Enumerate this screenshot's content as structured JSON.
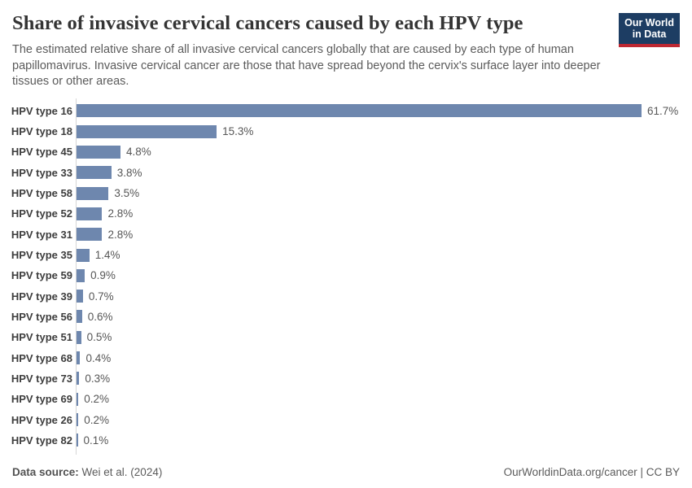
{
  "header": {
    "title": "Share of invasive cervical cancers caused by each HPV type",
    "subtitle": "The estimated relative share of all invasive cervical cancers globally that are caused by each type of human papillomavirus. Invasive cervical cancer are those that have spread beyond the cervix's surface layer into deeper tissues or other areas.",
    "logo": {
      "line1": "Our World",
      "line2": "in Data"
    }
  },
  "chart_data": {
    "type": "bar",
    "orientation": "horizontal",
    "title": "Share of invasive cervical cancers caused by each HPV type",
    "categories": [
      "HPV type 16",
      "HPV type 18",
      "HPV type 45",
      "HPV type 33",
      "HPV type 58",
      "HPV type 52",
      "HPV type 31",
      "HPV type 35",
      "HPV type 59",
      "HPV type 39",
      "HPV type 56",
      "HPV type 51",
      "HPV type 68",
      "HPV type 73",
      "HPV type 69",
      "HPV type 26",
      "HPV type 82"
    ],
    "values": [
      61.7,
      15.3,
      4.8,
      3.8,
      3.5,
      2.8,
      2.8,
      1.4,
      0.9,
      0.7,
      0.6,
      0.5,
      0.4,
      0.3,
      0.2,
      0.2,
      0.1
    ],
    "value_labels": [
      "61.7%",
      "15.3%",
      "4.8%",
      "3.8%",
      "3.5%",
      "2.8%",
      "2.8%",
      "1.4%",
      "0.9%",
      "0.7%",
      "0.6%",
      "0.5%",
      "0.4%",
      "0.3%",
      "0.2%",
      "0.2%",
      "0.1%"
    ],
    "xlabel": "",
    "ylabel": "",
    "xlim": [
      0,
      65
    ],
    "grid": false,
    "legend": "none",
    "unit": "%"
  },
  "footer": {
    "datasource_label": "Data source:",
    "datasource_value": " Wei et al. (2024)",
    "attribution": "OurWorldinData.org/cancer | CC BY"
  },
  "colors": {
    "bar": "#6e87ae",
    "axis_line": "#d6d6d6",
    "logo_background": "#1d3d63",
    "logo_accent": "#be2832",
    "title_text": "#343434",
    "subtitle_text": "#5b5b5b"
  }
}
